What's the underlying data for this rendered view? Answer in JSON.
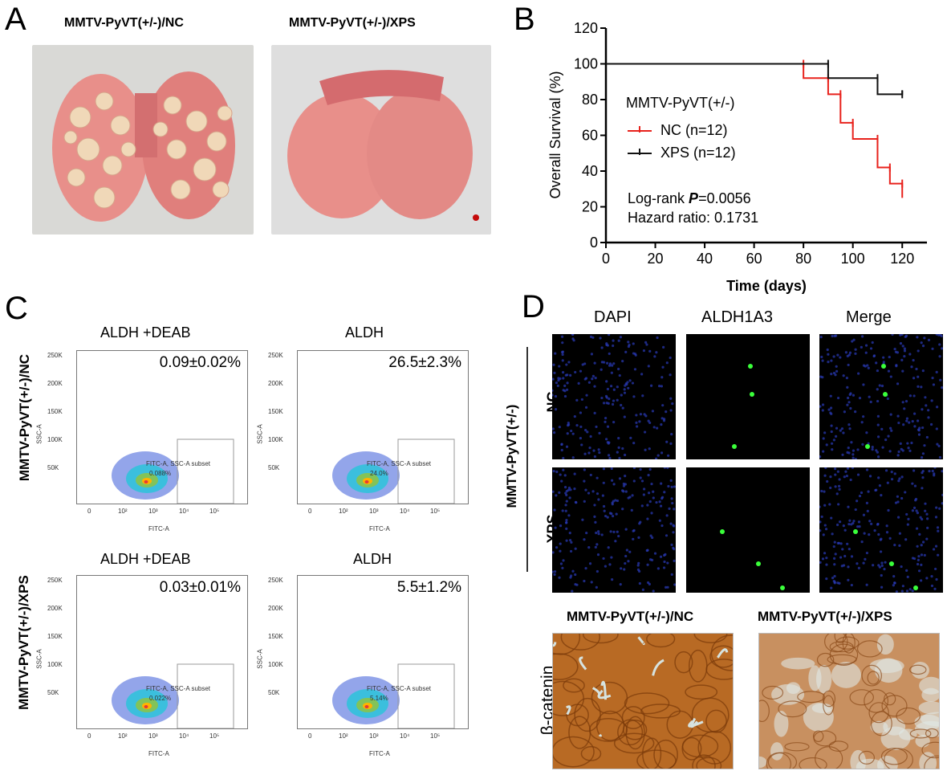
{
  "panels": {
    "A": {
      "letter": "A",
      "labels": [
        "MMTV-PyVT(+/-)/NC",
        "MMTV-PyVT(+/-)/XPS"
      ],
      "colors": {
        "lung": "#e88f8a",
        "lung_dark": "#c85a5a",
        "nodule": "#f0d8b8",
        "background": "#dcdcdc"
      }
    },
    "B": {
      "letter": "B",
      "legend_title": "MMTV-PyVT(+/-)",
      "stats": [
        "Log-rank ",
        "P",
        "=0.0056",
        "Hazard ratio: 0.1731"
      ]
    },
    "C": {
      "letter": "C",
      "row_labels": [
        "MMTV-PyVT(+/-)/NC",
        "MMTV-PyVT(+/-)/XPS"
      ],
      "plots": [
        {
          "title": "ALDH +DEAB",
          "value": "0.09±0.02%",
          "gate_label": "FITC-A, SSC-A subset",
          "gate_pct": "0.088%"
        },
        {
          "title": "ALDH",
          "value": "26.5±2.3%",
          "gate_label": "FITC-A, SSC-A subset",
          "gate_pct": "24.0%"
        },
        {
          "title": "ALDH +DEAB",
          "value": "0.03±0.01%",
          "gate_label": "FITC-A, SSC-A subset",
          "gate_pct": "0.022%"
        },
        {
          "title": "ALDH",
          "value": "5.5±1.2%",
          "gate_label": "FITC-A, SSC-A subset",
          "gate_pct": "5.14%"
        }
      ],
      "y_ticks": [
        "250K",
        "200K",
        "150K",
        "100K",
        "50K"
      ],
      "x_ticks": [
        "0",
        "10²",
        "10³",
        "10⁴",
        "10⁵"
      ],
      "x_axis": "FITC-A",
      "y_axis": "SSC-A"
    },
    "D": {
      "letter": "D",
      "col_labels": [
        "DAPI",
        "ALDH1A3",
        "Merge"
      ],
      "group_label": "MMTV-PyVT(+/-)",
      "row_labels": [
        "NC",
        "XPS"
      ],
      "ihc_labels": [
        "MMTV-PyVT(+/-)/NC",
        "MMTV-PyVT(+/-)/XPS"
      ],
      "ihc_marker": "β-catenin",
      "colors": {
        "dapi": "#1a2a9a",
        "aldh": "#3aff3a",
        "ihc": "#b5651d"
      }
    }
  },
  "chart_data": {
    "type": "line",
    "subtype": "kaplan-meier",
    "xlabel": "Time (days)",
    "ylabel": "Overall Survival (%)",
    "xlim": [
      0,
      130
    ],
    "ylim": [
      0,
      120
    ],
    "x_ticks": [
      0,
      20,
      40,
      60,
      80,
      100,
      120
    ],
    "y_ticks": [
      0,
      20,
      40,
      60,
      80,
      100,
      120
    ],
    "grid": false,
    "series": [
      {
        "name": "NC (n=12)",
        "color": "#e8221c",
        "x": [
          0,
          80,
          80,
          90,
          90,
          95,
          95,
          100,
          100,
          110,
          110,
          115,
          115,
          120,
          120
        ],
        "y": [
          100,
          100,
          92,
          92,
          83,
          83,
          67,
          67,
          58,
          58,
          42,
          42,
          33,
          33,
          25
        ]
      },
      {
        "name": "XPS (n=12)",
        "color": "#111111",
        "x": [
          0,
          90,
          90,
          110,
          110,
          120,
          120
        ],
        "y": [
          100,
          100,
          92,
          92,
          83,
          83,
          85
        ]
      }
    ]
  }
}
